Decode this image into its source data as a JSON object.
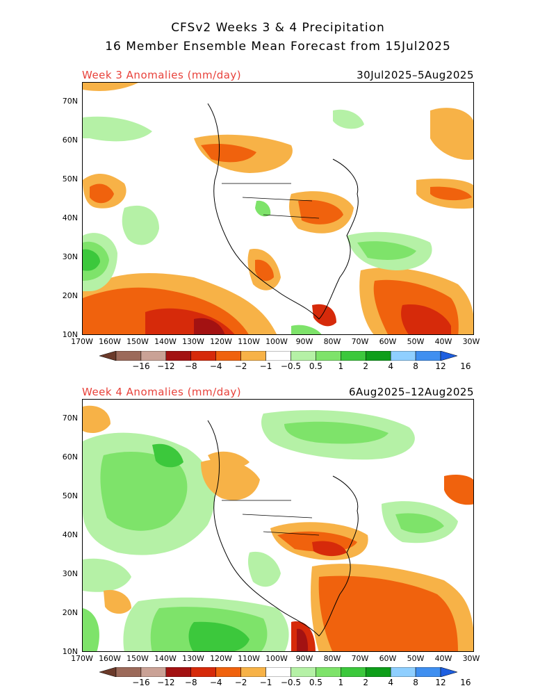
{
  "header": {
    "line1": "CFSv2 Weeks 3 & 4 Precipitation",
    "line2": "16 Member Ensemble Mean Forecast from 15Jul2025"
  },
  "panels": [
    {
      "title": "Week 3 Anomalies (mm/day)",
      "dates": "30Jul2025–5Aug2025"
    },
    {
      "title": "Week 4 Anomalies (mm/day)",
      "dates": "6Aug2025–12Aug2025"
    }
  ],
  "axes": {
    "lat_labels": [
      "70N",
      "60N",
      "50N",
      "40N",
      "30N",
      "20N",
      "10N"
    ],
    "lon_labels": [
      "170W",
      "160W",
      "150W",
      "140W",
      "130W",
      "120W",
      "110W",
      "100W",
      "90W",
      "80W",
      "70W",
      "60W",
      "50W",
      "40W",
      "30W"
    ]
  },
  "colorbar": {
    "labels": [
      "−16",
      "−12",
      "−8",
      "−4",
      "−2",
      "−1",
      "−0.5",
      "0.5",
      "1",
      "2",
      "4",
      "8",
      "12",
      "16"
    ],
    "colors": [
      "#6b3a2a",
      "#9c6a5a",
      "#caa296",
      "#a31212",
      "#d62a0a",
      "#f0620d",
      "#f7b247",
      "#ffffff",
      "#b5f1a6",
      "#7ee36a",
      "#3cc83c",
      "#0e9e1a",
      "#8fcfff",
      "#3f8ff0",
      "#1e5fe0"
    ]
  }
}
